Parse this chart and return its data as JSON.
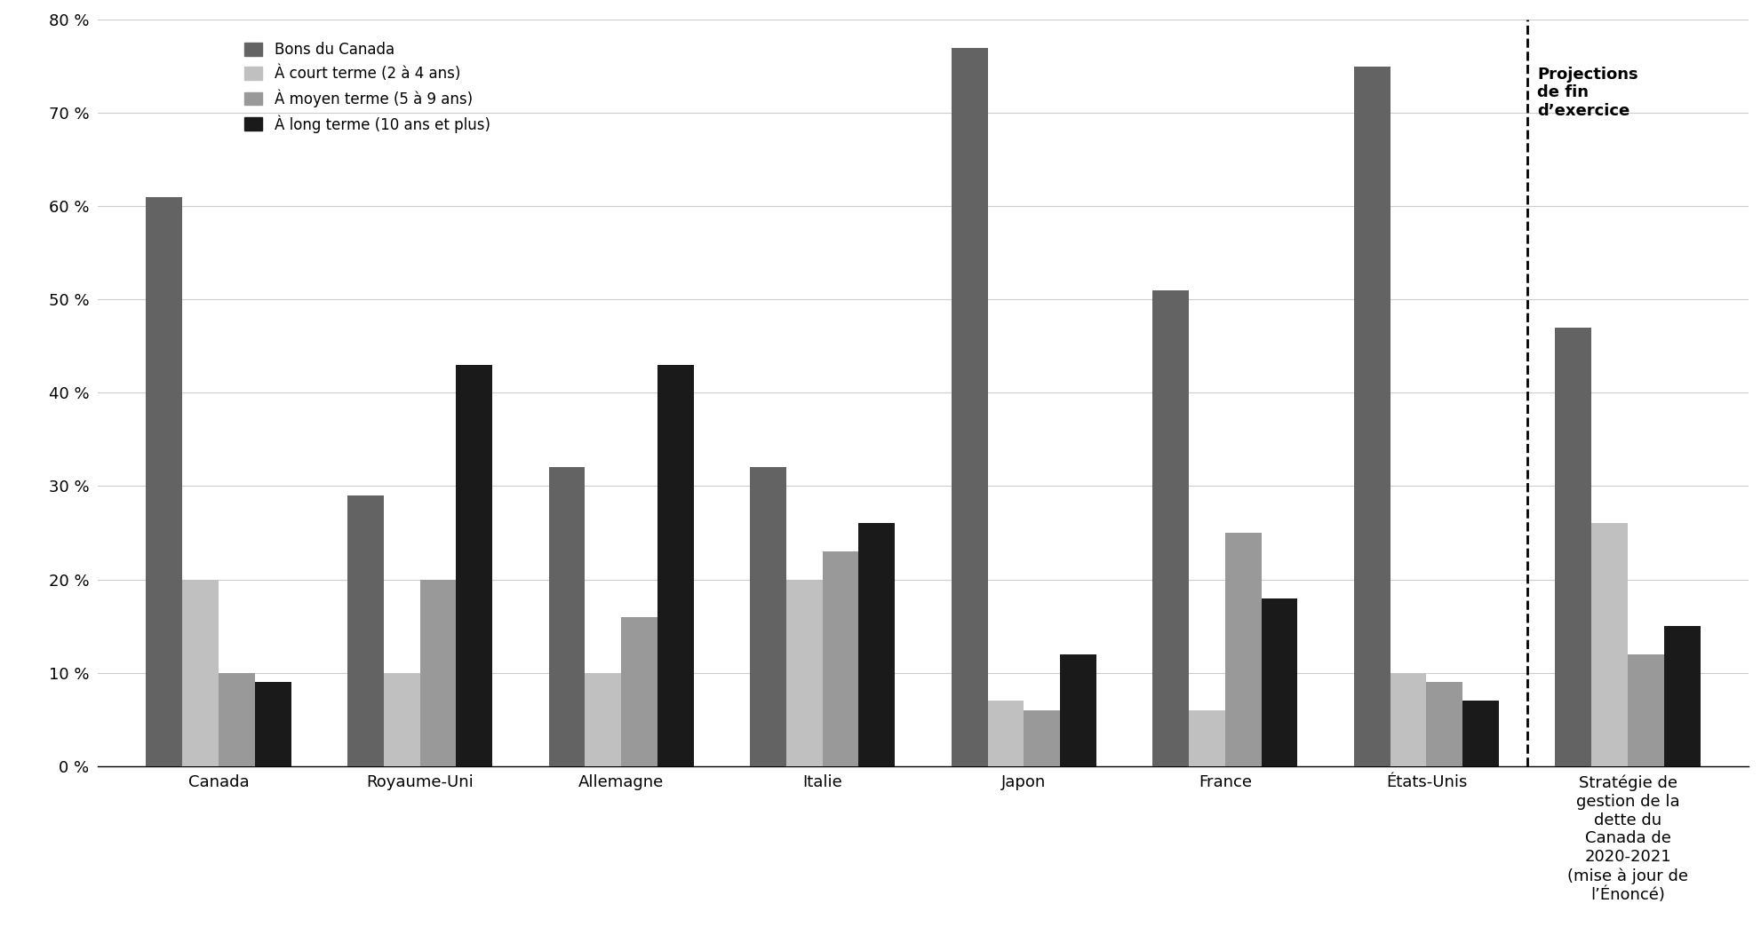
{
  "categories": [
    "Canada",
    "Royaume-Uni",
    "Allemagne",
    "Italie",
    "Japon",
    "France",
    "États-Unis",
    "Stratégie de\ngestion de la\ndette du\nCanada de\n2020-2021\n(mise à jour de\nl’Énoncé)"
  ],
  "series": {
    "Bons du Canada": [
      61,
      29,
      32,
      32,
      77,
      51,
      75,
      47
    ],
    "À court terme (2 à 4 ans)": [
      20,
      10,
      10,
      20,
      7,
      6,
      10,
      26
    ],
    "À moyen terme (5 à 9 ans)": [
      10,
      20,
      16,
      23,
      6,
      25,
      9,
      12
    ],
    "À long terme (10 ans et plus)": [
      9,
      43,
      43,
      26,
      12,
      18,
      7,
      15
    ]
  },
  "colors": {
    "Bons du Canada": "#636363",
    "À court terme (2 à 4 ans)": "#c0c0c0",
    "À moyen terme (5 à 9 ans)": "#999999",
    "À long terme (10 ans et plus)": "#1a1a1a"
  },
  "ylim": [
    0,
    80
  ],
  "yticks": [
    0,
    10,
    20,
    30,
    40,
    50,
    60,
    70,
    80
  ],
  "dashed_line_after_index": 6,
  "projections_label": "Projections\nde fin\nd’exercice",
  "background_color": "#ffffff",
  "grid_color": "#cccccc"
}
